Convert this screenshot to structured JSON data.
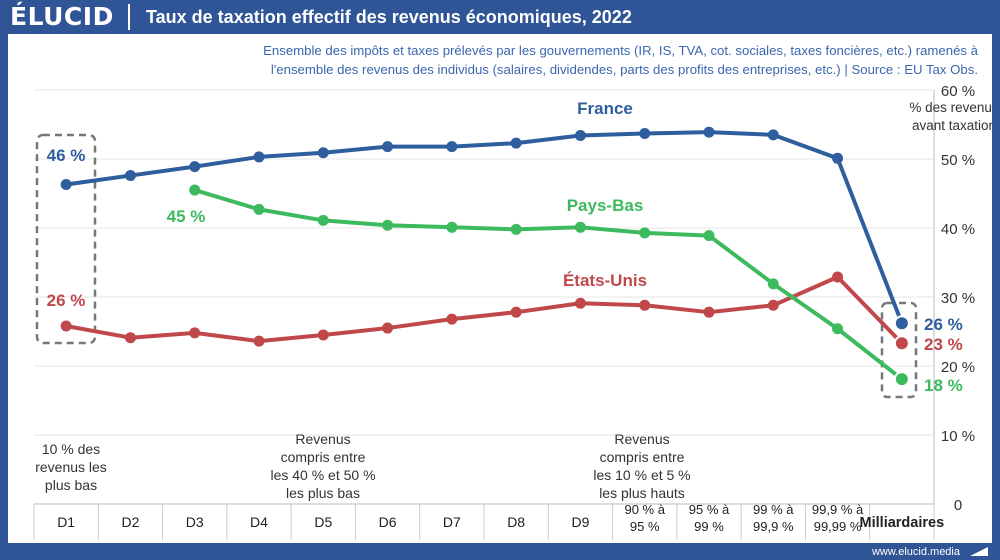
{
  "brand": "ÉLUCID",
  "header": {
    "title": "Taux de taxation effectif des revenus économiques, 2022"
  },
  "subtitle": {
    "line1": "Ensemble des impôts et taxes prélevés par les gouvernements (IR, IS, TVA, cot. sociales, taxes foncières, etc.) ramenés à",
    "line2": "l'ensemble des revenus des individus (salaires, dividendes, parts des profits des entreprises, etc.)  |  Source : EU Tax Obs."
  },
  "footer": {
    "url": "www.elucid.media"
  },
  "colors": {
    "brand": "#2f5596",
    "france": "#2e5e9e",
    "paysbas": "#3dba5e",
    "etatsunis": "#c0474a"
  },
  "chart_data": {
    "type": "line",
    "categories": [
      "D1",
      "D2",
      "D3",
      "D4",
      "D5",
      "D6",
      "D7",
      "D8",
      "D9",
      "90 % à 95 %",
      "95 % à 99 %",
      "99 % à 99,9 %",
      "99,9 % à 99,99 %",
      "Milliardaires"
    ],
    "ylim": [
      0,
      60
    ],
    "yticks": [
      "0",
      "10 %",
      "20 %",
      "30 %",
      "40 %",
      "50 %",
      "60 %"
    ],
    "ylabel": "% des revenus avant taxation",
    "grid": true,
    "series": [
      {
        "name": "France",
        "color": "#2e5e9e",
        "values": [
          46.3,
          47.6,
          48.9,
          50.3,
          50.9,
          51.8,
          51.8,
          52.3,
          53.4,
          53.7,
          53.9,
          53.5,
          50.1,
          26.2
        ]
      },
      {
        "name": "Pays-Bas",
        "color": "#3dba5e",
        "values": [
          null,
          null,
          45.5,
          42.7,
          41.1,
          40.4,
          40.1,
          39.8,
          40.1,
          39.3,
          38.9,
          31.9,
          25.4,
          18.1
        ]
      },
      {
        "name": "États-Unis",
        "color": "#c0474a",
        "values": [
          25.8,
          24.1,
          24.8,
          23.6,
          24.5,
          25.5,
          26.8,
          27.8,
          29.1,
          28.8,
          27.8,
          28.8,
          32.9,
          23.3
        ]
      }
    ],
    "data_labels": {
      "france_start": "46 %",
      "paysbas_start": "45 %",
      "etatsunis_start": "26 %",
      "france_end": "26 %",
      "etatsunis_end": "23 %",
      "paysbas_end": "18 %"
    },
    "annotations": {
      "bottom": [
        "10 % des",
        "revenus les",
        "plus bas"
      ],
      "middle": [
        "Revenus",
        "compris entre",
        "les 40 % et 50 %",
        "les plus bas"
      ],
      "upper": [
        "Revenus",
        "compris entre",
        "les 10 % et 5 %",
        "les plus hauts"
      ]
    }
  }
}
